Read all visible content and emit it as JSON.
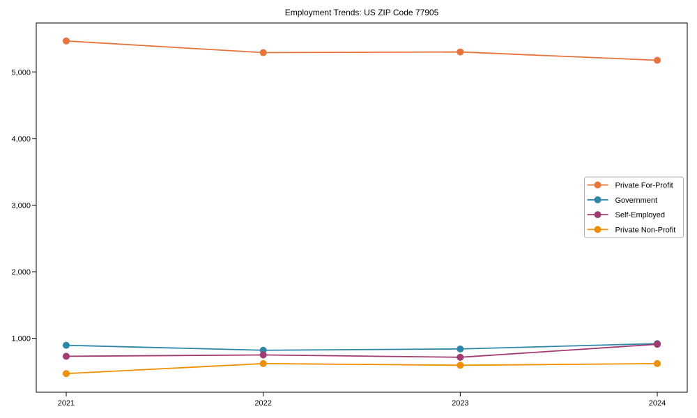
{
  "figure": {
    "background": "#ffffff",
    "axis_color": "#000000",
    "legend_border_color": "#b3b3b3",
    "legend_background": "#ffffff"
  },
  "chart_data": {
    "type": "line",
    "title": "Employment Trends: US ZIP Code 77905",
    "xlabel": "",
    "ylabel": "",
    "categories": [
      "2021",
      "2022",
      "2023",
      "2024"
    ],
    "series": [
      {
        "name": "Private For-Profit",
        "color": "#E8743B",
        "values": [
          5465,
          5290,
          5300,
          5175
        ]
      },
      {
        "name": "Government",
        "color": "#2E86AB",
        "values": [
          895,
          820,
          840,
          920
        ]
      },
      {
        "name": "Self-Employed",
        "color": "#A23B72",
        "values": [
          730,
          750,
          715,
          910
        ]
      },
      {
        "name": "Private Non-Profit",
        "color": "#F18F01",
        "values": [
          470,
          620,
          595,
          620
        ]
      }
    ],
    "y_ticks": [
      1000,
      2000,
      3000,
      4000,
      5000
    ],
    "y_tick_labels": [
      "1,000",
      "2,000",
      "3,000",
      "4,000",
      "5,000"
    ],
    "ylim": [
      190,
      5735
    ],
    "grid": false,
    "legend_position": "center-right",
    "marker": "circle",
    "marker_radius": 5,
    "line_width": 1.8
  }
}
